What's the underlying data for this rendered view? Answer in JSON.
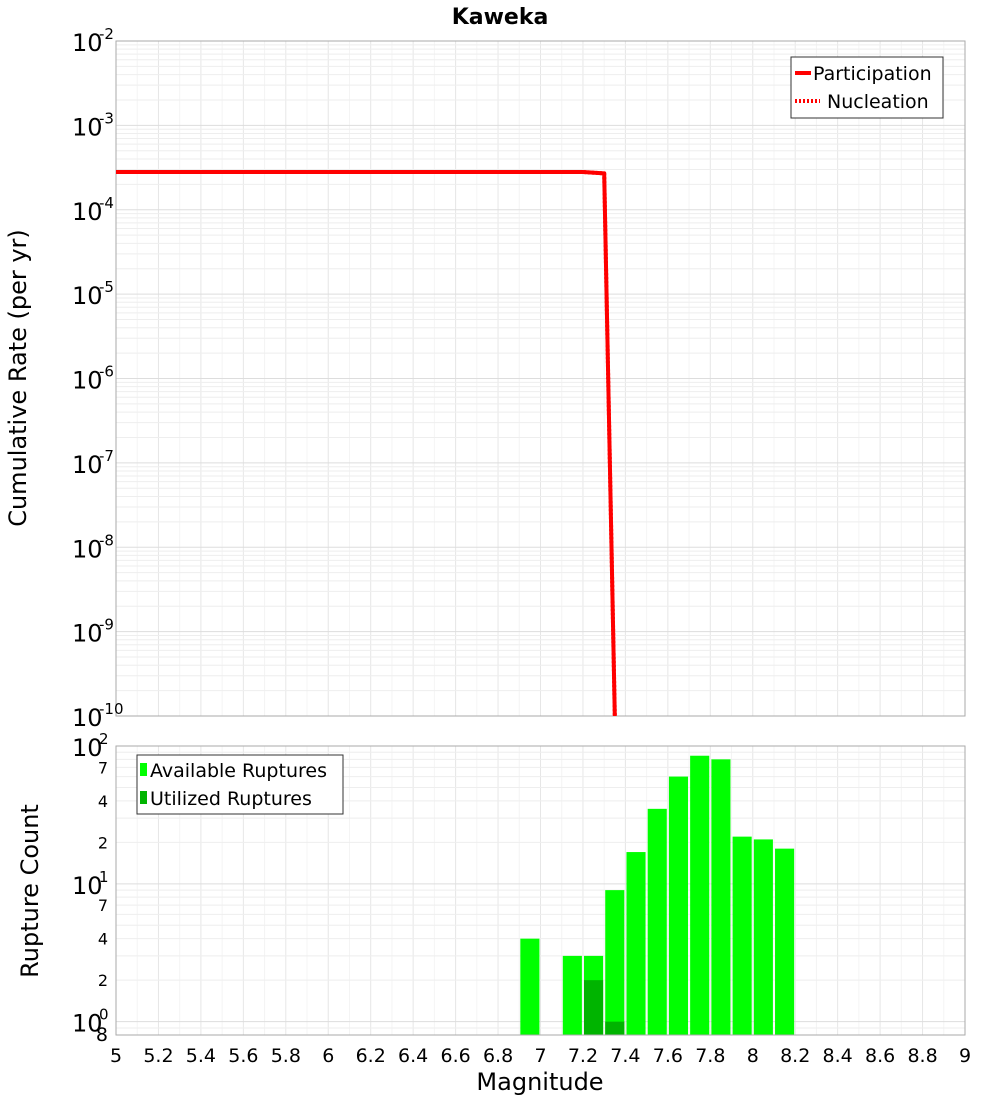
{
  "chart_data": {
    "title": "Kaweka",
    "xlabel": "Magnitude",
    "xlim": [
      5,
      9
    ],
    "x_ticks": [
      "5",
      "5.2",
      "5.4",
      "5.6",
      "5.8",
      "6",
      "6.2",
      "6.4",
      "6.6",
      "6.8",
      "7",
      "7.2",
      "7.4",
      "7.6",
      "7.8",
      "8",
      "8.2",
      "8.4",
      "8.6",
      "8.8",
      "9"
    ],
    "panels": [
      {
        "type": "line",
        "ylabel": "Cumulative Rate (per yr)",
        "yscale": "log",
        "ylim": [
          1e-10,
          0.01
        ],
        "y_tick_exponents": [
          "-2",
          "-3",
          "-4",
          "-5",
          "-6",
          "-7",
          "-8",
          "-9",
          "-10"
        ],
        "legend": {
          "position": "top-right",
          "entries": [
            {
              "label": "Participation",
              "style": "solid",
              "color": "#ff0000"
            },
            {
              "label": "Nucleation",
              "style": "dotted",
              "color": "#ff0000"
            }
          ]
        },
        "series": [
          {
            "name": "Participation",
            "color": "#ff0000",
            "x": [
              5.0,
              7.2,
              7.3,
              7.35
            ],
            "y": [
              0.00028,
              0.00028,
              0.00027,
              1e-10
            ]
          },
          {
            "name": "Nucleation",
            "color": "#ff0000",
            "x": [
              5.0,
              7.2,
              7.3,
              7.35
            ],
            "y": [
              0.00028,
              0.00028,
              0.00027,
              1e-10
            ]
          }
        ]
      },
      {
        "type": "bar",
        "ylabel": "Rupture Count",
        "yscale": "log",
        "ylim": [
          0.8,
          100
        ],
        "y_major_exponents": [
          "2",
          "1",
          "0"
        ],
        "y_minor_labels": [
          {
            "value": 70,
            "label": "7"
          },
          {
            "value": 40,
            "label": "4"
          },
          {
            "value": 20,
            "label": "2"
          },
          {
            "value": 7,
            "label": "7"
          },
          {
            "value": 4,
            "label": "4"
          },
          {
            "value": 2,
            "label": "2"
          },
          {
            "value": 0.8,
            "label": "8"
          }
        ],
        "legend": {
          "position": "top-left",
          "entries": [
            {
              "label": "Available Ruptures",
              "color": "#00ff00"
            },
            {
              "label": "Utilized Ruptures",
              "color": "#00b400"
            }
          ]
        },
        "bar_width": 0.09,
        "series": [
          {
            "name": "Available Ruptures",
            "color": "#00ff00",
            "x": [
              6.95,
              7.15,
              7.25,
              7.35,
              7.45,
              7.55,
              7.65,
              7.75,
              7.85,
              7.95,
              8.05,
              8.15
            ],
            "values": [
              4,
              3,
              3,
              9,
              17,
              35,
              60,
              85,
              80,
              22,
              21,
              18
            ]
          },
          {
            "name": "Utilized Ruptures",
            "color": "#00b400",
            "x": [
              7.25,
              7.35
            ],
            "values": [
              2,
              1
            ]
          }
        ]
      }
    ]
  }
}
